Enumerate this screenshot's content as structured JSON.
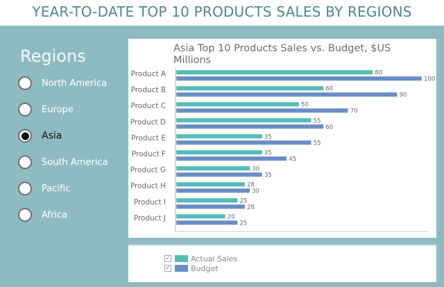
{
  "page": {
    "title": "YEAR-TO-DATE TOP 10 PRODUCTS SALES BY REGIONS"
  },
  "regions": {
    "title": "Regions",
    "selected": "Asia",
    "items": [
      {
        "label": "North America",
        "selected": false
      },
      {
        "label": "Europe",
        "selected": false
      },
      {
        "label": "Asia",
        "selected": true
      },
      {
        "label": "South America",
        "selected": false
      },
      {
        "label": "Pacific",
        "selected": false
      },
      {
        "label": "Africa",
        "selected": false
      }
    ]
  },
  "legend": {
    "items": [
      {
        "label": "Actual Sales",
        "checked": true,
        "color": "#55bdb5"
      },
      {
        "label": "Budget",
        "checked": true,
        "color": "#6b8cc7"
      }
    ]
  },
  "colors": {
    "accent": "#8ebbc1",
    "title": "#4e8790"
  },
  "chart_data": {
    "type": "bar",
    "orientation": "horizontal",
    "title": "Asia Top 10 Products Sales vs. Budget, $US Millions",
    "xlabel": "",
    "ylabel": "",
    "xlim": [
      0,
      100
    ],
    "grid": false,
    "legend_position": "bottom",
    "categories": [
      "Product A",
      "Product B",
      "Product C",
      "Product D",
      "Product E",
      "Product F",
      "Product G",
      "Product H",
      "Product I",
      "Product J"
    ],
    "series": [
      {
        "name": "Actual Sales",
        "color": "#55bdb5",
        "values": [
          80,
          60,
          50,
          55,
          35,
          35,
          30,
          28,
          25,
          20
        ]
      },
      {
        "name": "Budget",
        "color": "#6b8cc7",
        "values": [
          100,
          90,
          70,
          60,
          55,
          45,
          35,
          30,
          28,
          25
        ]
      }
    ]
  }
}
